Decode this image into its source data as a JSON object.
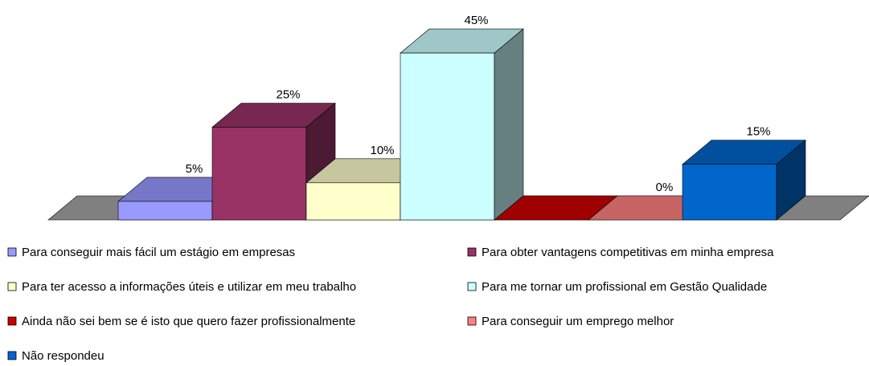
{
  "chart_data": {
    "type": "bar3d",
    "categories": [
      null
    ],
    "series": [
      {
        "name": "Para conseguir mais fácil um estágio em empresas",
        "color": "#9999ff",
        "values": [
          5
        ],
        "value_labels": [
          "5%"
        ]
      },
      {
        "name": "Para obter vantagens competitivas em minha empresa",
        "color": "#993366",
        "values": [
          25
        ],
        "value_labels": [
          "25%"
        ]
      },
      {
        "name": "Para ter acesso a informações úteis e utilizar em meu trabalho",
        "color": "#ffffcc",
        "values": [
          10
        ],
        "value_labels": [
          "10%"
        ]
      },
      {
        "name": "Para me tornar um profissional em Gestão Qualidade",
        "color": "#ccffff",
        "values": [
          45
        ],
        "value_labels": [
          "45%"
        ]
      },
      {
        "name": "Ainda não sei bem se é isto que quero fazer profissionalmente",
        "color": "#cc0000",
        "values": [
          0
        ]
      },
      {
        "name": "Para conseguir um emprego melhor",
        "color": "#ff8080",
        "values": [
          0
        ],
        "value_labels": [
          "0%"
        ]
      },
      {
        "name": "Não respondeu",
        "color": "#0066cc",
        "values": [
          15
        ],
        "value_labels": [
          "15%"
        ]
      }
    ],
    "legend": "bottom"
  }
}
